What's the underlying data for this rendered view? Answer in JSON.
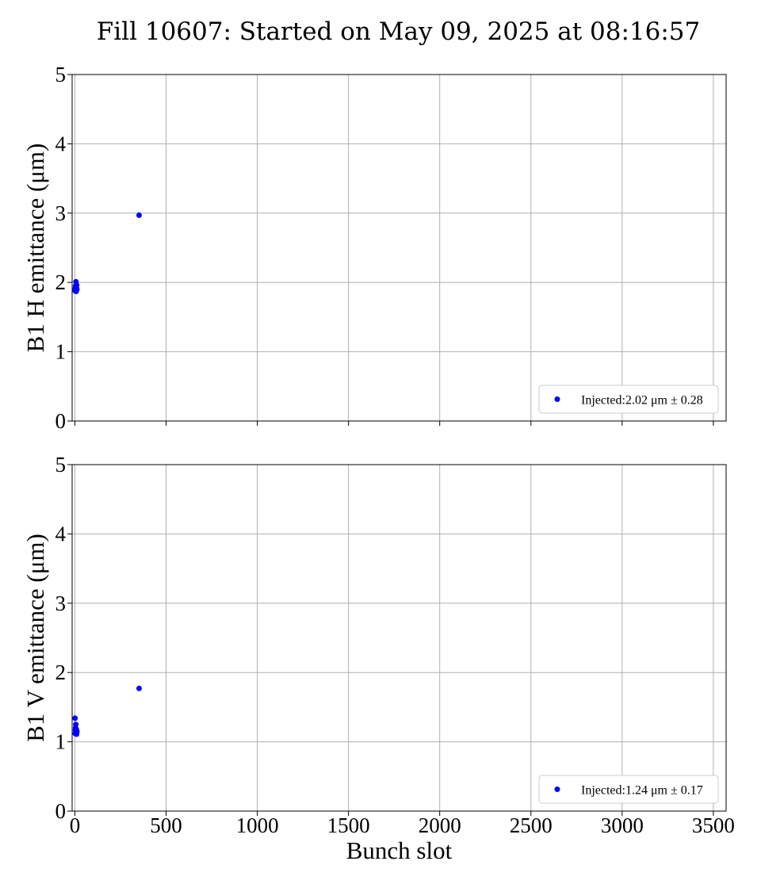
{
  "figure": {
    "title": "Fill 10607: Started on May 09, 2025 at 08:16:57"
  },
  "chart_data": [
    {
      "type": "scatter",
      "ylabel": "B1 H emittance (μm)",
      "xlabel": "",
      "xlim": [
        -15,
        3570
      ],
      "ylim": [
        0,
        5
      ],
      "x_ticks": [
        0,
        500,
        1000,
        1500,
        2000,
        2500,
        3000,
        3500
      ],
      "y_ticks": [
        0,
        1,
        2,
        3,
        4,
        5
      ],
      "show_x_tick_labels": false,
      "grid": true,
      "legend": {
        "position": "lower-right",
        "entries": [
          "Injected:2.02 μm ± 0.28"
        ]
      },
      "series": [
        {
          "name": "Injected:2.02 μm ± 0.28",
          "color": "#0000ff",
          "x": [
            1,
            2,
            3,
            4,
            5,
            6,
            7,
            8,
            9,
            10,
            11,
            352
          ],
          "y": [
            1.88,
            1.9,
            1.92,
            1.95,
            1.89,
            2.01,
            1.87,
            1.93,
            1.91,
            1.96,
            1.9,
            2.97
          ]
        }
      ]
    },
    {
      "type": "scatter",
      "ylabel": "B1 V emittance (μm)",
      "xlabel": "Bunch slot",
      "xlim": [
        -15,
        3570
      ],
      "ylim": [
        0,
        5
      ],
      "x_ticks": [
        0,
        500,
        1000,
        1500,
        2000,
        2500,
        3000,
        3500
      ],
      "y_ticks": [
        0,
        1,
        2,
        3,
        4,
        5
      ],
      "show_x_tick_labels": true,
      "grid": true,
      "legend": {
        "position": "lower-right",
        "entries": [
          "Injected:1.24 μm ± 0.17"
        ]
      },
      "series": [
        {
          "name": "Injected:1.24 μm ± 0.17",
          "color": "#0000ff",
          "x": [
            1,
            2,
            3,
            4,
            5,
            6,
            7,
            8,
            9,
            10,
            11,
            352
          ],
          "y": [
            1.34,
            1.12,
            1.17,
            1.2,
            1.25,
            1.14,
            1.16,
            1.18,
            1.11,
            1.13,
            1.15,
            1.77
          ]
        }
      ]
    }
  ]
}
